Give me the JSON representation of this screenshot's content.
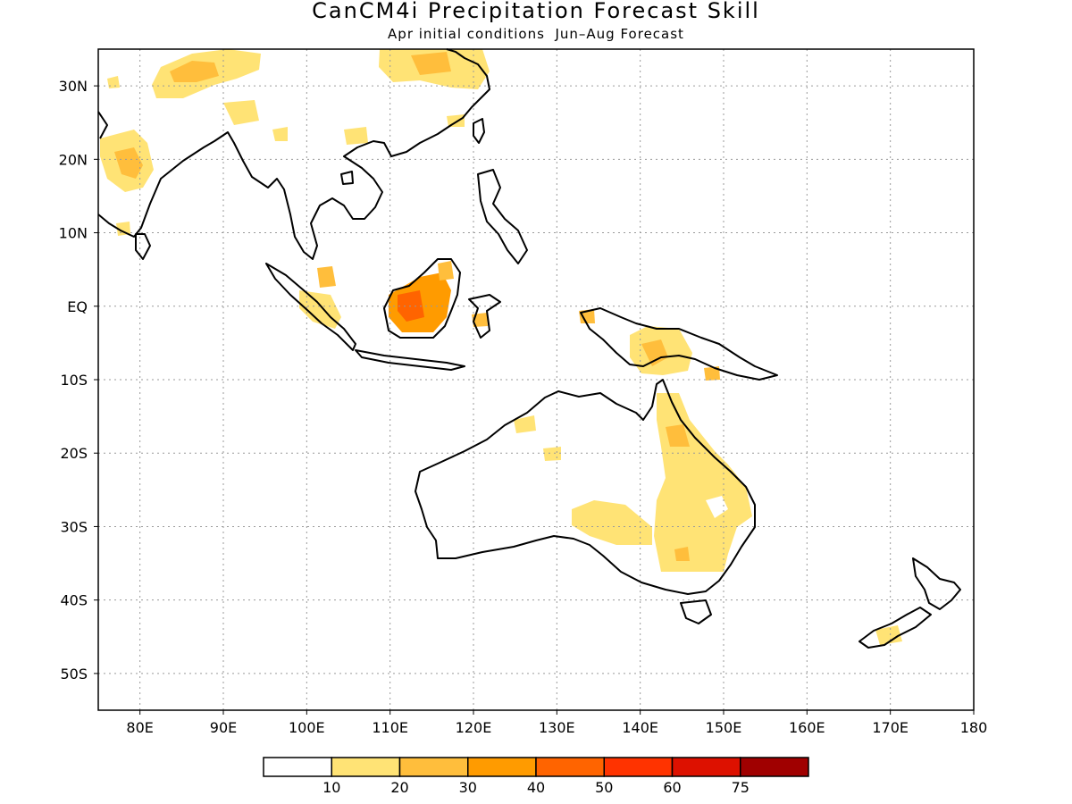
{
  "title": "CanCM4i Precipitation Forecast Skill",
  "subtitle": "Apr initial conditions  Jun–Aug Forecast",
  "map": {
    "lon_range": [
      75,
      180
    ],
    "lat_range": [
      -55,
      35
    ],
    "lat_ticks": [
      {
        "value": 30,
        "label": "30N"
      },
      {
        "value": 20,
        "label": "20N"
      },
      {
        "value": 10,
        "label": "10N"
      },
      {
        "value": 0,
        "label": "EQ"
      },
      {
        "value": -10,
        "label": "10S"
      },
      {
        "value": -20,
        "label": "20S"
      },
      {
        "value": -30,
        "label": "30S"
      },
      {
        "value": -40,
        "label": "40S"
      },
      {
        "value": -50,
        "label": "50S"
      }
    ],
    "lon_ticks": [
      {
        "value": 80,
        "label": "80E"
      },
      {
        "value": 90,
        "label": "90E"
      },
      {
        "value": 100,
        "label": "100E"
      },
      {
        "value": 110,
        "label": "110E"
      },
      {
        "value": 120,
        "label": "120E"
      },
      {
        "value": 130,
        "label": "130E"
      },
      {
        "value": 140,
        "label": "140E"
      },
      {
        "value": 150,
        "label": "150E"
      },
      {
        "value": 160,
        "label": "160E"
      },
      {
        "value": 170,
        "label": "170E"
      },
      {
        "value": 180,
        "label": "180"
      }
    ],
    "grid": true,
    "gridline_style": "dotted"
  },
  "colorbar": {
    "colors": [
      "#ffffff",
      "#ffe375",
      "#ffbe3c",
      "#ff9b00",
      "#ff6400",
      "#ff3300",
      "#dd1100",
      "#a00000"
    ],
    "labels": [
      "10",
      "20",
      "30",
      "40",
      "50",
      "60",
      "75"
    ]
  }
}
